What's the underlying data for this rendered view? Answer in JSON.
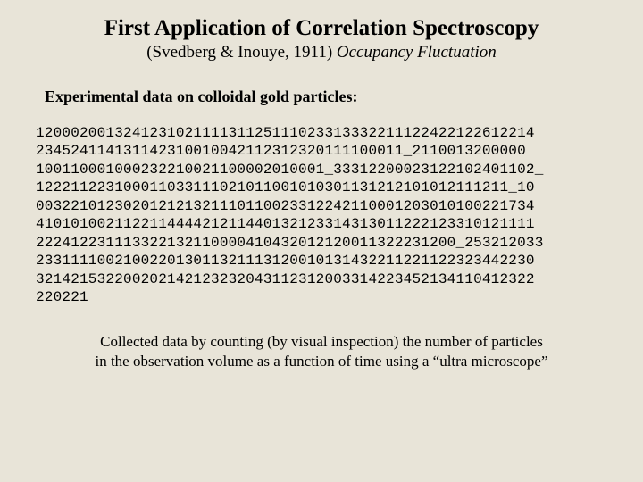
{
  "title": "First Application of Correlation Spectroscopy",
  "subtitle_plain": "(Svedberg & Inouye, 1911) ",
  "subtitle_italic": "Occupancy Fluctuation",
  "experimental_label": "Experimental data on colloidal gold particles:",
  "data_lines": [
    "120002001324123102111131125111023313332211122422122612214",
    "234524114131142310010042112312320111100011_2110013200000",
    "100110001000232210021100002010001_33312200023122102401102_",
    "122211223100011033111021011001010301131212101012111211_10",
    "003221012302012121321110110023312242110001203010100221734",
    "410101002112211444421211440132123314313011222123310121111",
    "222412231113322132110000410432012120011322231200_253212033",
    "233111100210022013011321113120010131432211221122323442230",
    "321421532200202142123232043112312003314223452134110412322",
    "220221"
  ],
  "footer_line1": "Collected data by counting (by visual inspection) the number of particles",
  "footer_line2": "in the observation volume as a function of time using a “ultra microscope”",
  "colors": {
    "background": "#e8e4d8",
    "text": "#000000"
  }
}
